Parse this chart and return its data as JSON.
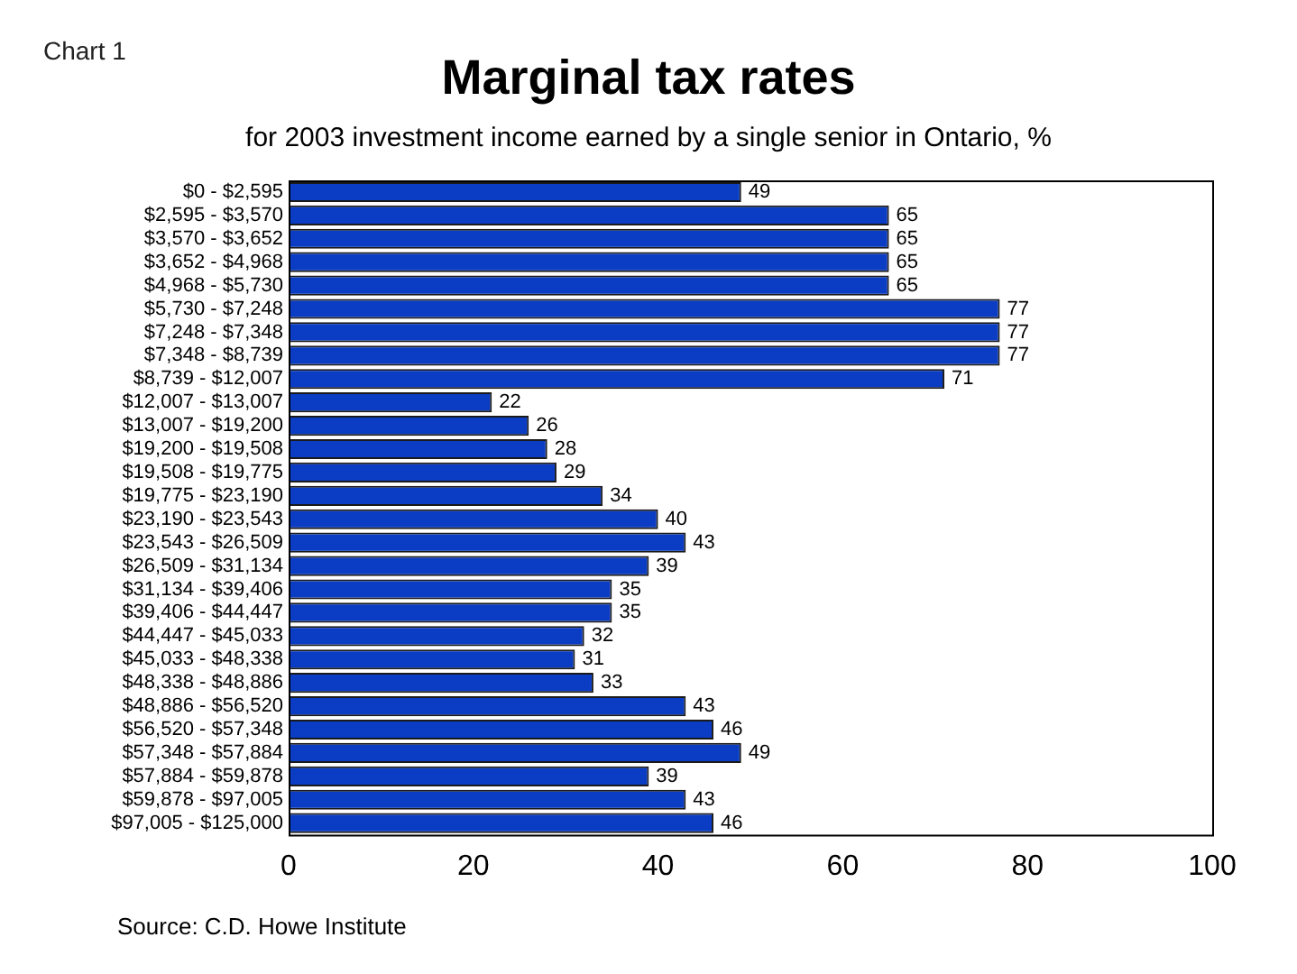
{
  "chart_data": {
    "type": "bar",
    "orientation": "horizontal",
    "title": "Marginal tax rates",
    "subtitle": "for 2003 investment income earned by a single senior in Ontario, %",
    "annotations": [
      "Chart 1",
      "Source: C.D. Howe Institute"
    ],
    "categories": [
      "$0 - $2,595",
      "$2,595 - $3,570",
      "$3,570 - $3,652",
      "$3,652 - $4,968",
      "$4,968 - $5,730",
      "$5,730 - $7,248",
      "$7,248 - $7,348",
      "$7,348 - $8,739",
      "$8,739 - $12,007",
      "$12,007 - $13,007",
      "$13,007 - $19,200",
      "$19,200 - $19,508",
      "$19,508 - $19,775",
      "$19,775 - $23,190",
      "$23,190 - $23,543",
      "$23,543 - $26,509",
      "$26,509 - $31,134",
      "$31,134 - $39,406",
      "$39,406 - $44,447",
      "$44,447 - $45,033",
      "$45,033 - $48,338",
      "$48,338 - $48,886",
      "$48,886 - $56,520",
      "$56,520 - $57,348",
      "$57,348 - $57,884",
      "$57,884 - $59,878",
      "$59,878 - $97,005",
      "$97,005 - $125,000"
    ],
    "values": [
      49,
      65,
      65,
      65,
      65,
      77,
      77,
      77,
      71,
      22,
      26,
      28,
      29,
      34,
      40,
      43,
      39,
      35,
      35,
      32,
      31,
      33,
      43,
      46,
      49,
      39,
      43,
      46
    ],
    "color": "#0a3cc4",
    "xlim": [
      0,
      100
    ],
    "xticks": [
      0,
      20,
      40,
      60,
      80,
      100
    ],
    "data_labels": true,
    "grid": false,
    "legend": false
  }
}
